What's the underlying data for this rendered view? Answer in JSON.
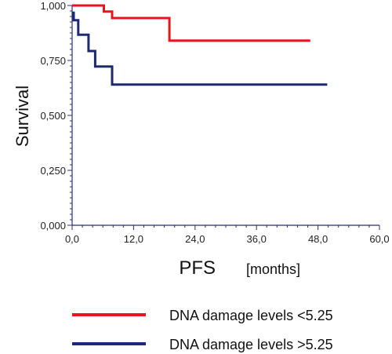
{
  "chart_data": {
    "type": "line",
    "title": "",
    "ylabel": "Survival",
    "xlabel": "PFS",
    "xlabel_unit": "[months]",
    "xlim": [
      0,
      60
    ],
    "ylim": [
      0,
      1
    ],
    "x_ticks": [
      0,
      12,
      24,
      36,
      48,
      60
    ],
    "x_tick_labels": [
      "0,0",
      "12,0",
      "24,0",
      "36,0",
      "48,0",
      "60,0"
    ],
    "y_ticks": [
      0,
      0.25,
      0.5,
      0.75,
      1
    ],
    "y_tick_labels": [
      "0,000",
      "0,250",
      "0,500",
      "0,750",
      "1,000"
    ],
    "grid": false,
    "legend_position": "bottom",
    "series": [
      {
        "name": "DNA damage levels <5.25",
        "color": "#e8161b",
        "step": true,
        "points": [
          [
            0,
            1.0
          ],
          [
            6.2,
            1.0
          ],
          [
            6.2,
            0.972
          ],
          [
            7.8,
            0.972
          ],
          [
            7.8,
            0.943
          ],
          [
            19.0,
            0.943
          ],
          [
            19.0,
            0.84
          ],
          [
            46.5,
            0.84
          ]
        ]
      },
      {
        "name": "DNA damage levels >5.25",
        "color": "#1d2a73",
        "step": true,
        "points": [
          [
            0,
            0.967
          ],
          [
            0.3,
            0.967
          ],
          [
            0.3,
            0.933
          ],
          [
            1.2,
            0.933
          ],
          [
            1.2,
            0.867
          ],
          [
            3.2,
            0.867
          ],
          [
            3.2,
            0.793
          ],
          [
            4.5,
            0.793
          ],
          [
            4.5,
            0.722
          ],
          [
            7.8,
            0.722
          ],
          [
            7.8,
            0.64
          ],
          [
            49.8,
            0.64
          ]
        ]
      }
    ]
  }
}
